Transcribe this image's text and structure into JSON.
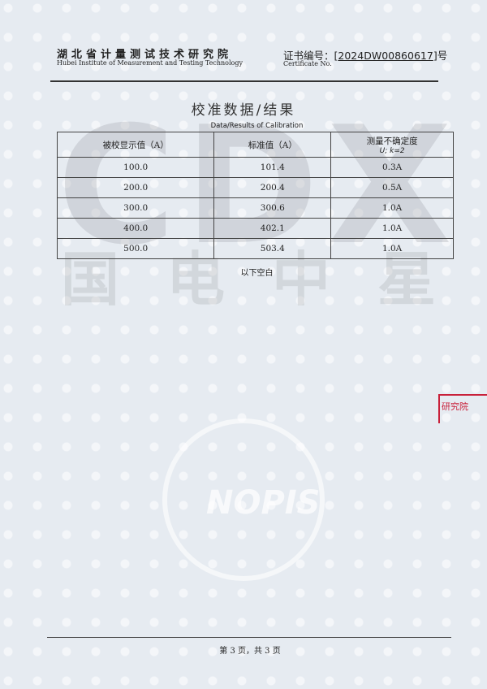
{
  "header": {
    "institute_cn": "湖北省计量测试技术研究院",
    "institute_en": "Hubei Institute of Measurement and Testing Technology",
    "certificate_label": "证书编号：",
    "certificate_no": "2024DW00860617",
    "certificate_suffix": "号",
    "certificate_en": "Certificate No."
  },
  "title": "校准数据/结果",
  "subtitle": "Data/Results of Calibration",
  "table": {
    "headers": [
      "被校显示值（A）",
      "标准值（A）",
      "测量不确定度"
    ],
    "header_sub": "U; k=2",
    "rows": [
      [
        "100.0",
        "101.4",
        "0.3A"
      ],
      [
        "200.0",
        "200.4",
        "0.5A"
      ],
      [
        "300.0",
        "300.6",
        "1.0A"
      ],
      [
        "400.0",
        "402.1",
        "1.0A"
      ],
      [
        "500.0",
        "503.4",
        "1.0A"
      ]
    ]
  },
  "blank_note": "以下空白",
  "stamp": "研究院",
  "watermarks": {
    "letters": "CDX",
    "cn": "国电中星",
    "logo": "NOPIS"
  },
  "footer": "第 3 页，共 3 页",
  "colors": {
    "stamp": "#c8203a",
    "background": "#e6ebf1"
  }
}
